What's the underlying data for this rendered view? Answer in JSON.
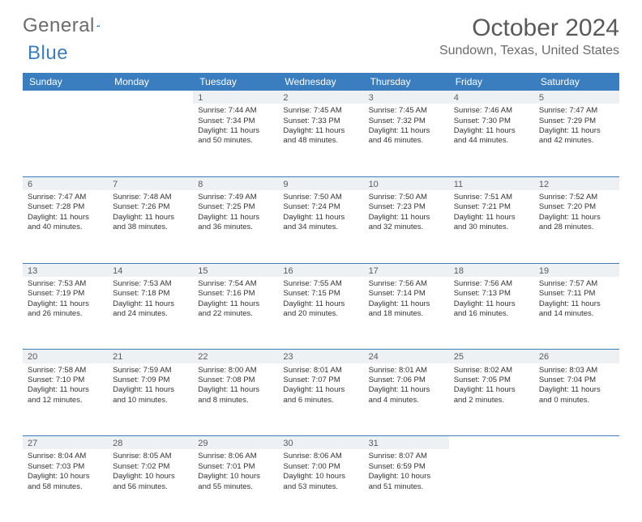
{
  "brand": {
    "part1": "General",
    "part2": "Blue"
  },
  "title": "October 2024",
  "location": "Sundown, Texas, United States",
  "colors": {
    "header_bg": "#3b7ec0",
    "header_text": "#ffffff",
    "daynum_bg": "#eef1f4",
    "row_border": "#3b7ec0",
    "title_color": "#595959",
    "text_color": "#333333",
    "page_bg": "#ffffff"
  },
  "day_names": [
    "Sunday",
    "Monday",
    "Tuesday",
    "Wednesday",
    "Thursday",
    "Friday",
    "Saturday"
  ],
  "weeks": [
    [
      null,
      null,
      {
        "n": "1",
        "l": [
          "Sunrise: 7:44 AM",
          "Sunset: 7:34 PM",
          "Daylight: 11 hours",
          "and 50 minutes."
        ]
      },
      {
        "n": "2",
        "l": [
          "Sunrise: 7:45 AM",
          "Sunset: 7:33 PM",
          "Daylight: 11 hours",
          "and 48 minutes."
        ]
      },
      {
        "n": "3",
        "l": [
          "Sunrise: 7:45 AM",
          "Sunset: 7:32 PM",
          "Daylight: 11 hours",
          "and 46 minutes."
        ]
      },
      {
        "n": "4",
        "l": [
          "Sunrise: 7:46 AM",
          "Sunset: 7:30 PM",
          "Daylight: 11 hours",
          "and 44 minutes."
        ]
      },
      {
        "n": "5",
        "l": [
          "Sunrise: 7:47 AM",
          "Sunset: 7:29 PM",
          "Daylight: 11 hours",
          "and 42 minutes."
        ]
      }
    ],
    [
      {
        "n": "6",
        "l": [
          "Sunrise: 7:47 AM",
          "Sunset: 7:28 PM",
          "Daylight: 11 hours",
          "and 40 minutes."
        ]
      },
      {
        "n": "7",
        "l": [
          "Sunrise: 7:48 AM",
          "Sunset: 7:26 PM",
          "Daylight: 11 hours",
          "and 38 minutes."
        ]
      },
      {
        "n": "8",
        "l": [
          "Sunrise: 7:49 AM",
          "Sunset: 7:25 PM",
          "Daylight: 11 hours",
          "and 36 minutes."
        ]
      },
      {
        "n": "9",
        "l": [
          "Sunrise: 7:50 AM",
          "Sunset: 7:24 PM",
          "Daylight: 11 hours",
          "and 34 minutes."
        ]
      },
      {
        "n": "10",
        "l": [
          "Sunrise: 7:50 AM",
          "Sunset: 7:23 PM",
          "Daylight: 11 hours",
          "and 32 minutes."
        ]
      },
      {
        "n": "11",
        "l": [
          "Sunrise: 7:51 AM",
          "Sunset: 7:21 PM",
          "Daylight: 11 hours",
          "and 30 minutes."
        ]
      },
      {
        "n": "12",
        "l": [
          "Sunrise: 7:52 AM",
          "Sunset: 7:20 PM",
          "Daylight: 11 hours",
          "and 28 minutes."
        ]
      }
    ],
    [
      {
        "n": "13",
        "l": [
          "Sunrise: 7:53 AM",
          "Sunset: 7:19 PM",
          "Daylight: 11 hours",
          "and 26 minutes."
        ]
      },
      {
        "n": "14",
        "l": [
          "Sunrise: 7:53 AM",
          "Sunset: 7:18 PM",
          "Daylight: 11 hours",
          "and 24 minutes."
        ]
      },
      {
        "n": "15",
        "l": [
          "Sunrise: 7:54 AM",
          "Sunset: 7:16 PM",
          "Daylight: 11 hours",
          "and 22 minutes."
        ]
      },
      {
        "n": "16",
        "l": [
          "Sunrise: 7:55 AM",
          "Sunset: 7:15 PM",
          "Daylight: 11 hours",
          "and 20 minutes."
        ]
      },
      {
        "n": "17",
        "l": [
          "Sunrise: 7:56 AM",
          "Sunset: 7:14 PM",
          "Daylight: 11 hours",
          "and 18 minutes."
        ]
      },
      {
        "n": "18",
        "l": [
          "Sunrise: 7:56 AM",
          "Sunset: 7:13 PM",
          "Daylight: 11 hours",
          "and 16 minutes."
        ]
      },
      {
        "n": "19",
        "l": [
          "Sunrise: 7:57 AM",
          "Sunset: 7:11 PM",
          "Daylight: 11 hours",
          "and 14 minutes."
        ]
      }
    ],
    [
      {
        "n": "20",
        "l": [
          "Sunrise: 7:58 AM",
          "Sunset: 7:10 PM",
          "Daylight: 11 hours",
          "and 12 minutes."
        ]
      },
      {
        "n": "21",
        "l": [
          "Sunrise: 7:59 AM",
          "Sunset: 7:09 PM",
          "Daylight: 11 hours",
          "and 10 minutes."
        ]
      },
      {
        "n": "22",
        "l": [
          "Sunrise: 8:00 AM",
          "Sunset: 7:08 PM",
          "Daylight: 11 hours",
          "and 8 minutes."
        ]
      },
      {
        "n": "23",
        "l": [
          "Sunrise: 8:01 AM",
          "Sunset: 7:07 PM",
          "Daylight: 11 hours",
          "and 6 minutes."
        ]
      },
      {
        "n": "24",
        "l": [
          "Sunrise: 8:01 AM",
          "Sunset: 7:06 PM",
          "Daylight: 11 hours",
          "and 4 minutes."
        ]
      },
      {
        "n": "25",
        "l": [
          "Sunrise: 8:02 AM",
          "Sunset: 7:05 PM",
          "Daylight: 11 hours",
          "and 2 minutes."
        ]
      },
      {
        "n": "26",
        "l": [
          "Sunrise: 8:03 AM",
          "Sunset: 7:04 PM",
          "Daylight: 11 hours",
          "and 0 minutes."
        ]
      }
    ],
    [
      {
        "n": "27",
        "l": [
          "Sunrise: 8:04 AM",
          "Sunset: 7:03 PM",
          "Daylight: 10 hours",
          "and 58 minutes."
        ]
      },
      {
        "n": "28",
        "l": [
          "Sunrise: 8:05 AM",
          "Sunset: 7:02 PM",
          "Daylight: 10 hours",
          "and 56 minutes."
        ]
      },
      {
        "n": "29",
        "l": [
          "Sunrise: 8:06 AM",
          "Sunset: 7:01 PM",
          "Daylight: 10 hours",
          "and 55 minutes."
        ]
      },
      {
        "n": "30",
        "l": [
          "Sunrise: 8:06 AM",
          "Sunset: 7:00 PM",
          "Daylight: 10 hours",
          "and 53 minutes."
        ]
      },
      {
        "n": "31",
        "l": [
          "Sunrise: 8:07 AM",
          "Sunset: 6:59 PM",
          "Daylight: 10 hours",
          "and 51 minutes."
        ]
      },
      null,
      null
    ]
  ]
}
